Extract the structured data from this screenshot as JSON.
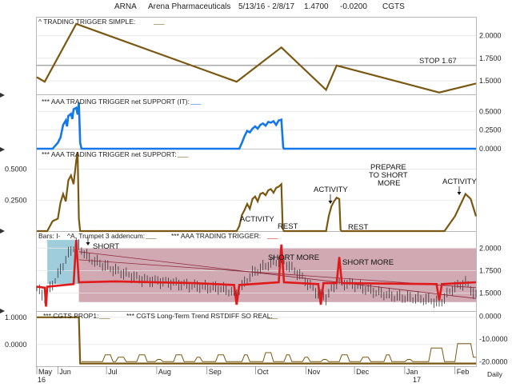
{
  "header": {
    "symbol": "ARNA",
    "company": "Arena Pharmaceuticals",
    "date_range": "5/13/16 - 2/8/17",
    "last_price": "1.4700",
    "change": "-0.0200",
    "source": "CGTS"
  },
  "colors": {
    "brown": "#7a5812",
    "blue": "#1478e8",
    "red": "#e01a1a",
    "zone_fill": "#c99aa6",
    "blue_zone_fill": "#8ec4d6",
    "price_bar": "#333333"
  },
  "x_axis": {
    "month_labels": [
      "May",
      "Jun",
      "Jul",
      "Aug",
      "Sep",
      "Oct",
      "Nov",
      "Dec",
      "Jan",
      "Feb"
    ],
    "year_labels": [
      "16",
      "17"
    ],
    "period_label": "Daily"
  },
  "chart_data": [
    {
      "type": "line",
      "title": "^ TRADING TRIGGER SIMPLE:",
      "legend_placeholder": "___",
      "y_ticks": [
        "2.0000",
        "1.7500",
        "1.5000"
      ],
      "ylim": [
        1.35,
        2.2
      ],
      "reference_line": {
        "value": 1.67,
        "label": "STOP 1.67"
      },
      "series": [
        {
          "values": [
            [
              0,
              1.54
            ],
            [
              3,
              1.49
            ],
            [
              15,
              2.13
            ],
            [
              76,
              1.49
            ],
            [
              93,
              1.87
            ],
            [
              110,
              1.4
            ],
            [
              114,
              1.67
            ],
            [
              153,
              1.37
            ],
            [
              167,
              1.47
            ]
          ]
        }
      ]
    },
    {
      "type": "area",
      "title": "*** AAA TRADING TRIGGER net SUPPORT (IT):",
      "legend_placeholder": "___",
      "y_ticks": [
        "0.5000",
        "0.2500",
        "0.0000"
      ],
      "ylim": [
        0,
        0.72
      ],
      "series": [
        {
          "values": [
            [
              0,
              0
            ],
            [
              6,
              0
            ],
            [
              8,
              0.08
            ],
            [
              9,
              0.15
            ],
            [
              10,
              0.32
            ],
            [
              11,
              0.38
            ],
            [
              11.5,
              0.3
            ],
            [
              12,
              0.44
            ],
            [
              13,
              0.47
            ],
            [
              13.5,
              0.4
            ],
            [
              14,
              0.53
            ],
            [
              15,
              0.55
            ],
            [
              15.5,
              0.46
            ],
            [
              16,
              0.62
            ],
            [
              16.5,
              0.08
            ],
            [
              17,
              0
            ],
            [
              77,
              0
            ],
            [
              78,
              0.08
            ],
            [
              79,
              0.17
            ],
            [
              80,
              0.24
            ],
            [
              81,
              0.22
            ],
            [
              82,
              0.27
            ],
            [
              83,
              0.3
            ],
            [
              84,
              0.27
            ],
            [
              85,
              0.32
            ],
            [
              86,
              0.34
            ],
            [
              87,
              0.31
            ],
            [
              88,
              0.36
            ],
            [
              89,
              0.35
            ],
            [
              90,
              0.37
            ],
            [
              91,
              0.32
            ],
            [
              92,
              0.38
            ],
            [
              93,
              0.39
            ],
            [
              93.7,
              0.02
            ],
            [
              94,
              0
            ],
            [
              167,
              0
            ]
          ]
        }
      ]
    },
    {
      "type": "line",
      "title": "*** AAA TRADING TRIGGER net SUPPORT:",
      "legend_placeholder": "___",
      "y_ticks": [
        "0.5000",
        "0.2500"
      ],
      "ylim": [
        0,
        0.66
      ],
      "series": [
        {
          "values": [
            [
              0,
              0
            ],
            [
              4,
              0
            ],
            [
              6,
              0.08
            ],
            [
              8,
              0.1
            ],
            [
              9,
              0.23
            ],
            [
              10,
              0.3
            ],
            [
              11,
              0.24
            ],
            [
              12,
              0.41
            ],
            [
              13,
              0.45
            ],
            [
              14,
              0.38
            ],
            [
              15,
              0.57
            ],
            [
              15.5,
              0.64
            ],
            [
              16,
              0.1
            ],
            [
              16.5,
              0
            ],
            [
              76,
              0
            ],
            [
              77,
              0.04
            ],
            [
              78,
              0.13
            ],
            [
              79,
              0.17
            ],
            [
              80,
              0.22
            ],
            [
              81,
              0.18
            ],
            [
              82,
              0.26
            ],
            [
              83,
              0.28
            ],
            [
              84,
              0.24
            ],
            [
              85,
              0.3
            ],
            [
              86,
              0.31
            ],
            [
              87,
              0.29
            ],
            [
              88,
              0.33
            ],
            [
              89,
              0.34
            ],
            [
              90,
              0.31
            ],
            [
              91,
              0.35
            ],
            [
              92,
              0.36
            ],
            [
              93,
              0.38
            ],
            [
              93.5,
              0.02
            ],
            [
              94,
              0
            ],
            [
              110,
              0
            ],
            [
              111,
              0.12
            ],
            [
              112,
              0.2
            ],
            [
              113,
              0.24
            ],
            [
              114,
              0.27
            ],
            [
              115,
              0.26
            ],
            [
              115.5,
              0.01
            ],
            [
              116,
              0
            ],
            [
              155,
              0
            ],
            [
              157,
              0.06
            ],
            [
              159,
              0.12
            ],
            [
              161,
              0.21
            ],
            [
              163,
              0.3
            ],
            [
              165,
              0.26
            ],
            [
              167,
              0.12
            ]
          ]
        }
      ],
      "annotations": [
        "ACTIVITY",
        "REST",
        "ACTIVITY",
        "REST",
        "PREPARE",
        "TO SHORT",
        "MORE",
        "ACTIVITY"
      ]
    },
    {
      "type": "line",
      "title": "^A. Trumpet 3 addencum:",
      "bars_label": "Bars: I-",
      "legend_placeholder": "___",
      "secondary_title": "*** AAA TRADING TRIGGER:",
      "y_ticks": [
        "2.0000",
        "1.7500",
        "1.5000"
      ],
      "ylim": [
        1.3,
        2.18
      ],
      "zones": [
        {
          "name": "blue-zone",
          "x": [
            4,
            16
          ],
          "y": [
            1.6,
            2.09
          ]
        },
        {
          "name": "red-zone",
          "x": [
            16,
            167
          ],
          "y": [
            1.4,
            2.0
          ]
        }
      ],
      "series": [
        {
          "name": "AAA TRADING TRIGGER",
          "values": [
            [
              0,
              1.57
            ],
            [
              3,
              1.56
            ],
            [
              3.5,
              1.35
            ],
            [
              4,
              1.57
            ],
            [
              14,
              1.6
            ],
            [
              15,
              2.09
            ],
            [
              16,
              1.62
            ],
            [
              30,
              1.63
            ],
            [
              60,
              1.61
            ],
            [
              75,
              1.59
            ],
            [
              76,
              1.37
            ],
            [
              77,
              1.59
            ],
            [
              92,
              1.62
            ],
            [
              93,
              2.04
            ],
            [
              94,
              1.62
            ],
            [
              107,
              1.6
            ],
            [
              108,
              1.37
            ],
            [
              109,
              1.61
            ],
            [
              114,
              1.61
            ],
            [
              115,
              1.9
            ],
            [
              116,
              1.61
            ],
            [
              152,
              1.6
            ],
            [
              153,
              1.42
            ],
            [
              154,
              1.6
            ],
            [
              167,
              1.62
            ]
          ]
        },
        {
          "name": "trend-line-upper",
          "values": [
            [
              16,
              1.96
            ],
            [
              167,
              1.44
            ]
          ]
        },
        {
          "name": "trend-line-lower",
          "values": [
            [
              16,
              1.87
            ],
            [
              167,
              1.56
            ]
          ]
        }
      ],
      "annotations": [
        "SHORT",
        "SHORT MORE",
        "SHORT MORE"
      ],
      "price_anchors": [
        [
          0,
          1.55
        ],
        [
          3,
          1.45
        ],
        [
          8,
          1.7
        ],
        [
          12,
          1.93
        ],
        [
          15,
          2.05
        ],
        [
          20,
          1.88
        ],
        [
          30,
          1.75
        ],
        [
          40,
          1.65
        ],
        [
          50,
          1.62
        ],
        [
          60,
          1.58
        ],
        [
          70,
          1.55
        ],
        [
          76,
          1.5
        ],
        [
          82,
          1.72
        ],
        [
          88,
          1.82
        ],
        [
          93,
          1.87
        ],
        [
          100,
          1.7
        ],
        [
          106,
          1.52
        ],
        [
          110,
          1.45
        ],
        [
          114,
          1.62
        ],
        [
          120,
          1.6
        ],
        [
          128,
          1.52
        ],
        [
          136,
          1.46
        ],
        [
          144,
          1.44
        ],
        [
          150,
          1.42
        ],
        [
          153,
          1.38
        ],
        [
          158,
          1.55
        ],
        [
          163,
          1.62
        ],
        [
          167,
          1.47
        ]
      ]
    },
    {
      "type": "line",
      "title": "*** CGTS PROP1:",
      "legend_placeholder": "___",
      "secondary_title": "*** CGTS Long-Term Trend RSTDIFF SO REAL:",
      "secondary_placeholder": "___",
      "left_y_ticks": [
        "1.0000",
        "0.0000"
      ],
      "right_y_ticks": [
        "0.0000",
        "-10.0000",
        "-20.0000"
      ],
      "left_ylim": [
        -0.8,
        1.2
      ],
      "right_ylim": [
        -22,
        2
      ],
      "series": [
        {
          "name": "CGTS PROP1",
          "axis": "left",
          "values": [
            [
              0,
              1.0
            ],
            [
              16,
              1.0
            ],
            [
              16.5,
              -0.7
            ],
            [
              167,
              -0.7
            ]
          ]
        },
        {
          "name": "CGTS Long-Term Trend RSTDIFF SO REAL",
          "axis": "right",
          "values": [
            [
              17,
              -20
            ],
            [
              25,
              -20
            ],
            [
              26,
              -17
            ],
            [
              28,
              -17
            ],
            [
              29,
              -20
            ],
            [
              30,
              -20
            ],
            [
              31,
              -18
            ],
            [
              33,
              -18
            ],
            [
              34,
              -20
            ],
            [
              38,
              -20
            ],
            [
              39,
              -17
            ],
            [
              41,
              -17
            ],
            [
              42,
              -20
            ],
            [
              45,
              -20
            ],
            [
              46,
              -19
            ],
            [
              47,
              -19
            ],
            [
              48,
              -20
            ],
            [
              52,
              -20
            ],
            [
              53,
              -17
            ],
            [
              55,
              -17
            ],
            [
              56,
              -20
            ],
            [
              60,
              -20
            ],
            [
              61,
              -18
            ],
            [
              62,
              -18
            ],
            [
              63,
              -20
            ],
            [
              68,
              -20
            ],
            [
              69,
              -17
            ],
            [
              71,
              -17
            ],
            [
              72,
              -20
            ],
            [
              78,
              -20
            ],
            [
              79,
              -17
            ],
            [
              80,
              -17
            ],
            [
              81,
              -20
            ],
            [
              86,
              -20
            ],
            [
              87,
              -16
            ],
            [
              89,
              -16
            ],
            [
              90,
              -20
            ],
            [
              94,
              -20
            ],
            [
              95,
              -17
            ],
            [
              96,
              -17
            ],
            [
              97,
              -20
            ],
            [
              101,
              -20
            ],
            [
              102,
              -18
            ],
            [
              103,
              -18
            ],
            [
              104,
              -20
            ],
            [
              108,
              -20
            ],
            [
              109,
              -19
            ],
            [
              110,
              -19
            ],
            [
              111,
              -20
            ],
            [
              115,
              -20
            ],
            [
              116,
              -17
            ],
            [
              118,
              -17
            ],
            [
              119,
              -20
            ],
            [
              123,
              -20
            ],
            [
              124,
              -18
            ],
            [
              126,
              -18
            ],
            [
              127,
              -20
            ],
            [
              132,
              -20
            ],
            [
              133,
              -17
            ],
            [
              134,
              -17
            ],
            [
              135,
              -20
            ],
            [
              140,
              -20
            ],
            [
              141,
              -19
            ],
            [
              142,
              -19
            ],
            [
              143,
              -20
            ],
            [
              149,
              -20
            ],
            [
              150,
              -14
            ],
            [
              154,
              -14
            ],
            [
              155,
              -20
            ],
            [
              159,
              -20
            ],
            [
              160,
              -12
            ],
            [
              165,
              -12
            ],
            [
              166,
              -18
            ],
            [
              167,
              -18
            ]
          ]
        }
      ]
    }
  ]
}
